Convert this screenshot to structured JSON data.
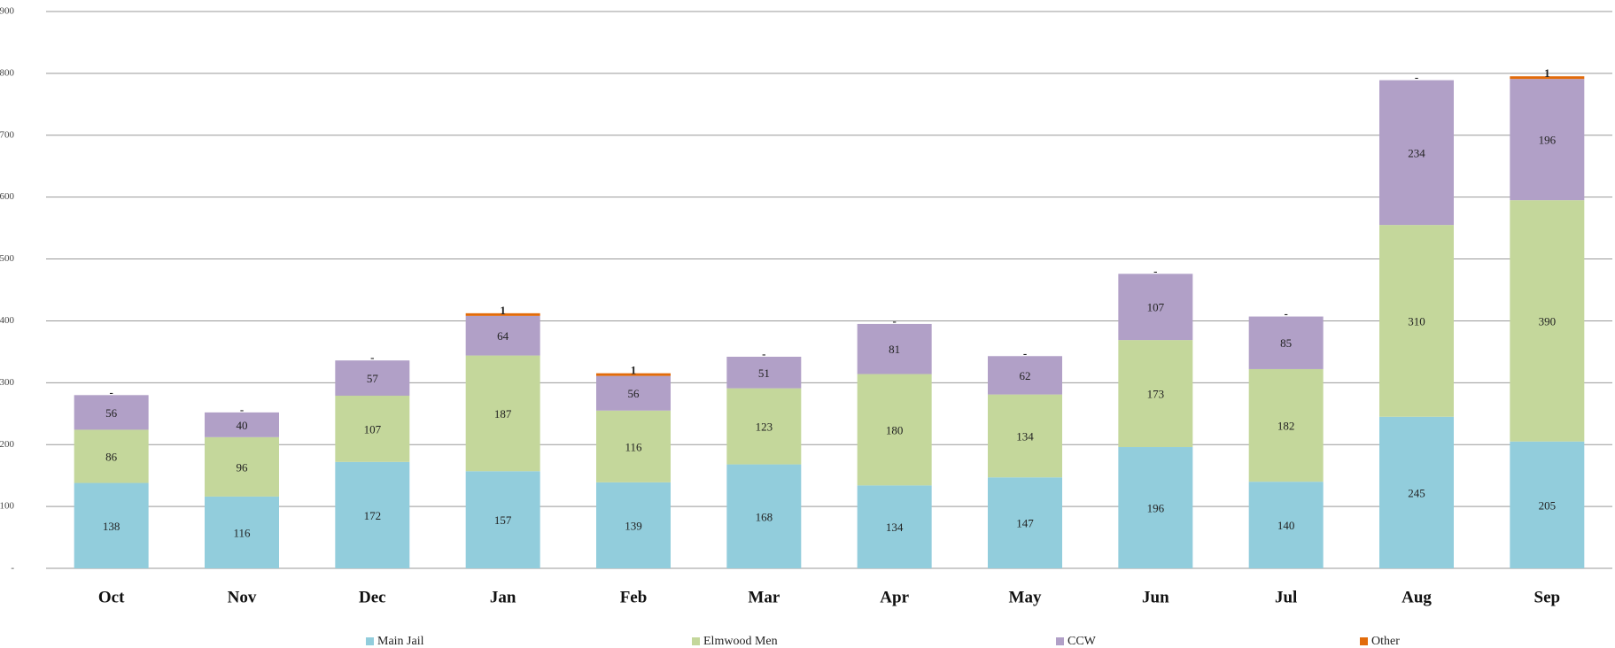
{
  "chart_data": {
    "type": "stacked_bar",
    "categories": [
      "Oct",
      "Nov",
      "Dec",
      "Jan",
      "Feb",
      "Mar",
      "Apr",
      "May",
      "Jun",
      "Jul",
      "Aug",
      "Sep"
    ],
    "series": [
      {
        "name": "Main Jail",
        "color": "#92cddc",
        "values": [
          138,
          116,
          172,
          157,
          139,
          168,
          134,
          147,
          196,
          140,
          245,
          205
        ]
      },
      {
        "name": "Elmwood Men",
        "color": "#c4d79b",
        "values": [
          86,
          96,
          107,
          187,
          116,
          123,
          180,
          134,
          173,
          182,
          310,
          390
        ]
      },
      {
        "name": "CCW",
        "color": "#b1a0c7",
        "values": [
          56,
          40,
          57,
          64,
          56,
          51,
          81,
          62,
          107,
          85,
          234,
          196
        ]
      },
      {
        "name": "Other",
        "color": "#e26b0a",
        "values": [
          0,
          0,
          0,
          1,
          1,
          0,
          0,
          0,
          0,
          0,
          0,
          1
        ],
        "value_labels": [
          "-",
          "-",
          "-",
          "1",
          "1",
          "-",
          "-",
          "-",
          "-",
          "-",
          "-",
          "1"
        ]
      }
    ],
    "ylim": [
      0,
      900
    ],
    "yticks": [
      {
        "value": 0,
        "label": "-"
      },
      100,
      200,
      300,
      400,
      500,
      600,
      700,
      800,
      900
    ],
    "grid": true,
    "legend": "bottom"
  }
}
